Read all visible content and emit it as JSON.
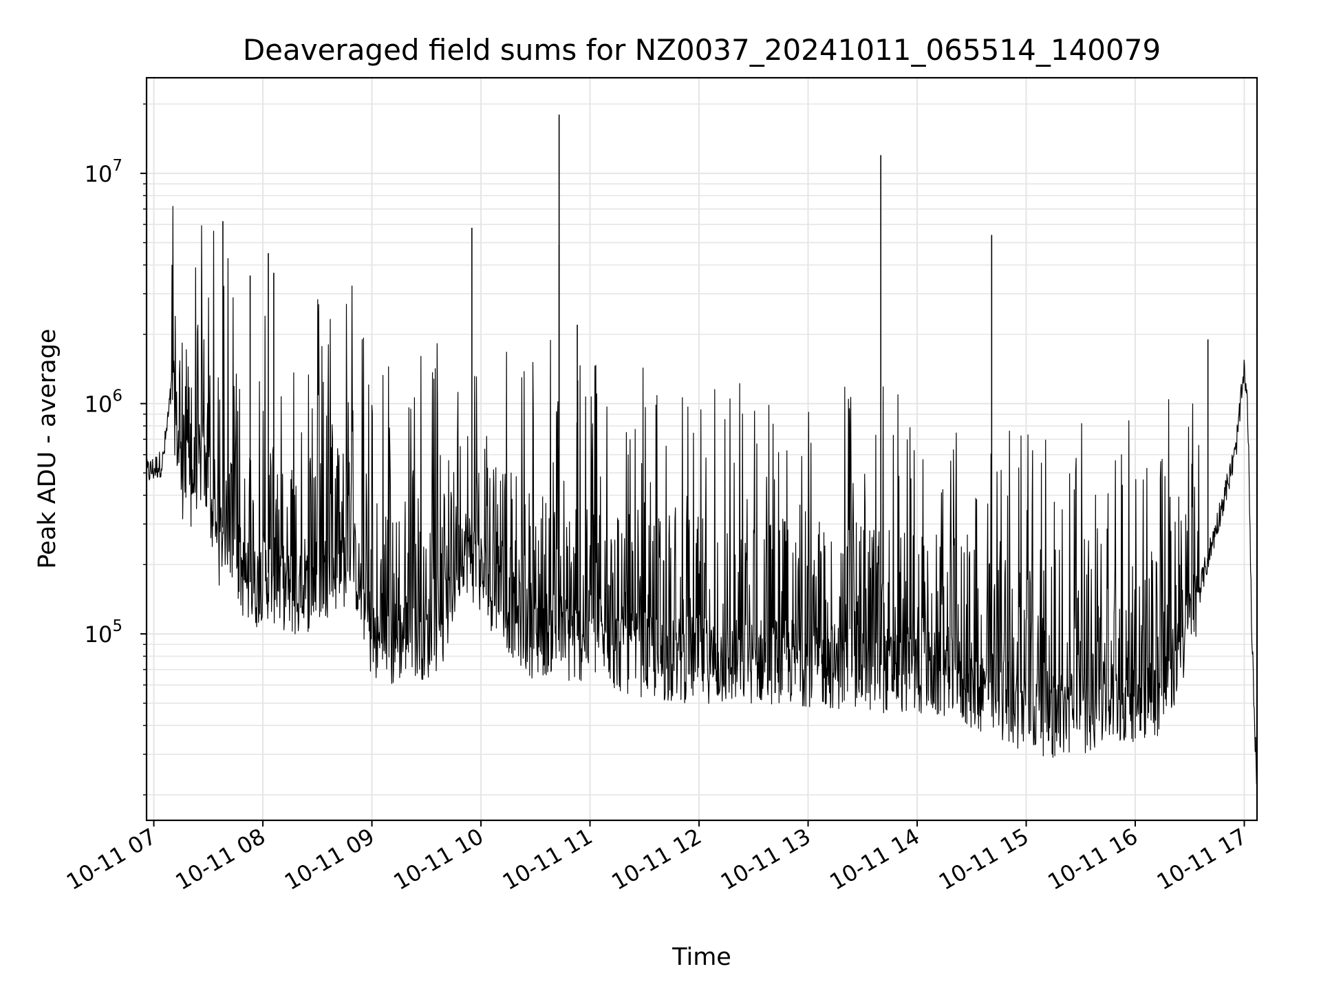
{
  "chart_data": {
    "type": "line",
    "title": "Deaveraged field sums for NZ0037_20241011_065514_140079",
    "xlabel": "Time",
    "ylabel": "Peak ADU - average",
    "yscale": "log",
    "grid": true,
    "line_color": "#000000",
    "grid_color": "#e5e5e5",
    "x_ticks": [
      "10-11 07",
      "10-11 08",
      "10-11 09",
      "10-11 10",
      "10-11 11",
      "10-11 12",
      "10-11 13",
      "10-11 14",
      "10-11 15",
      "10-11 16",
      "10-11 17"
    ],
    "y_ticks": [
      {
        "value": 100000,
        "base": "10",
        "exp": "5"
      },
      {
        "value": 1000000,
        "base": "10",
        "exp": "6"
      },
      {
        "value": 10000000,
        "base": "10",
        "exp": "7"
      }
    ],
    "xlim": [
      "2024-10-11 06:56",
      "2024-10-11 17:07"
    ],
    "ylim": [
      15500,
      26000000
    ],
    "series": [
      {
        "x": [
          "2024-10-11 06:56",
          "2024-10-11 07:00",
          "2024-10-11 07:05",
          "2024-10-11 07:10",
          "2024-10-11 07:12",
          "2024-10-11 07:15",
          "2024-10-11 07:20",
          "2024-10-11 07:25",
          "2024-10-11 07:30",
          "2024-10-11 07:35",
          "2024-10-11 07:40",
          "2024-10-11 07:45",
          "2024-10-11 07:50",
          "2024-10-11 07:55",
          "2024-10-11 08:00",
          "2024-10-11 08:10",
          "2024-10-11 08:20",
          "2024-10-11 08:30",
          "2024-10-11 08:40",
          "2024-10-11 08:50",
          "2024-10-11 09:00",
          "2024-10-11 09:10",
          "2024-10-11 09:20",
          "2024-10-11 09:30",
          "2024-10-11 09:40",
          "2024-10-11 09:50",
          "2024-10-11 10:00",
          "2024-10-11 10:10",
          "2024-10-11 10:20",
          "2024-10-11 10:30",
          "2024-10-11 10:40",
          "2024-10-11 10:50",
          "2024-10-11 11:00",
          "2024-10-11 11:15",
          "2024-10-11 11:30",
          "2024-10-11 11:45",
          "2024-10-11 12:00",
          "2024-10-11 12:15",
          "2024-10-11 12:30",
          "2024-10-11 12:45",
          "2024-10-11 13:00",
          "2024-10-11 13:15",
          "2024-10-11 13:30",
          "2024-10-11 13:45",
          "2024-10-11 14:00",
          "2024-10-11 14:15",
          "2024-10-11 14:30",
          "2024-10-11 14:45",
          "2024-10-11 15:00",
          "2024-10-11 15:15",
          "2024-10-11 15:30",
          "2024-10-11 15:45",
          "2024-10-11 16:00",
          "2024-10-11 16:15",
          "2024-10-11 16:25",
          "2024-10-11 16:35",
          "2024-10-11 16:45",
          "2024-10-11 16:55",
          "2024-10-11 17:00",
          "2024-10-11 17:02",
          "2024-10-11 17:04",
          "2024-10-11 17:06",
          "2024-10-11 17:07"
        ],
        "y": [
          500000,
          520000,
          560000,
          1200000,
          900000,
          520000,
          450000,
          600000,
          450000,
          250000,
          320000,
          230000,
          180000,
          160000,
          190000,
          170000,
          150000,
          180000,
          200000,
          220000,
          100000,
          90000,
          110000,
          100000,
          120000,
          260000,
          190000,
          150000,
          120000,
          100000,
          110000,
          95000,
          105000,
          90000,
          85000,
          80000,
          82000,
          78000,
          80000,
          80000,
          78000,
          76000,
          74000,
          73000,
          72000,
          68000,
          62000,
          55000,
          50000,
          46000,
          48000,
          52000,
          55000,
          58000,
          90000,
          150000,
          300000,
          600000,
          1400000,
          900000,
          110000,
          35000,
          22000
        ]
      }
    ],
    "spikes": [
      {
        "x": "2024-10-11 07:38",
        "y": 6200000
      },
      {
        "x": "2024-10-11 07:53",
        "y": 3600000
      },
      {
        "x": "2024-10-11 08:03",
        "y": 4500000
      },
      {
        "x": "2024-10-11 08:06",
        "y": 3700000
      },
      {
        "x": "2024-10-11 09:55",
        "y": 5800000
      },
      {
        "x": "2024-10-11 10:43",
        "y": 18000000
      },
      {
        "x": "2024-10-11 10:43",
        "y": 4900000
      },
      {
        "x": "2024-10-11 10:53",
        "y": 2200000
      },
      {
        "x": "2024-10-11 13:40",
        "y": 12000000
      },
      {
        "x": "2024-10-11 14:41",
        "y": 5400000
      },
      {
        "x": "2024-10-11 16:40",
        "y": 1900000
      }
    ]
  }
}
